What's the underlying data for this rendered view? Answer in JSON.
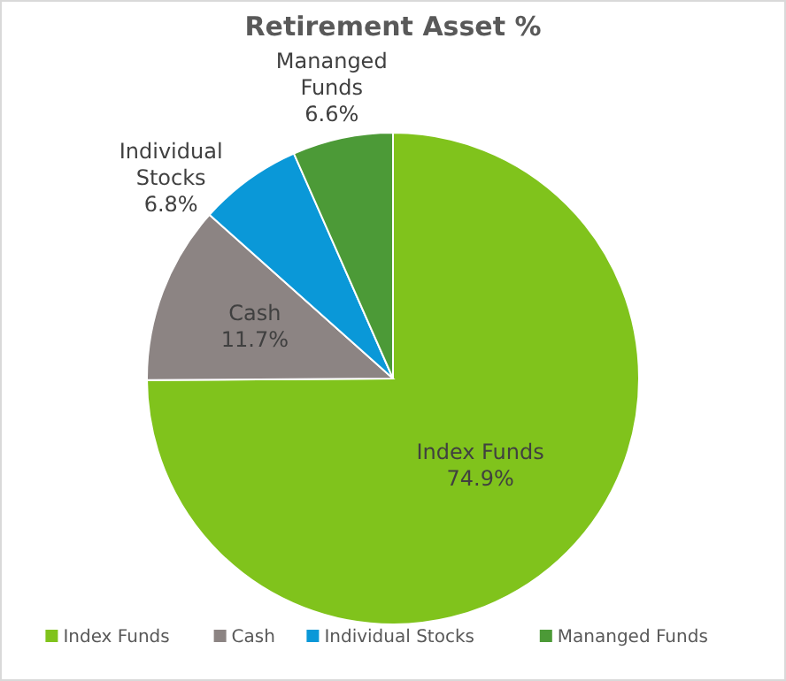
{
  "chart_data": {
    "type": "pie",
    "title": "Retirement Asset %",
    "categories": [
      "Index Funds",
      "Cash",
      "Individual Stocks",
      "Mananged Funds"
    ],
    "values": [
      74.9,
      11.7,
      6.8,
      6.6
    ],
    "colors": [
      "#80c31c",
      "#8c8483",
      "#0a98d8",
      "#4c9a37"
    ],
    "value_labels": [
      "74.9%",
      "11.7%",
      "6.8%",
      "6.6%"
    ],
    "legend": "bottom"
  }
}
